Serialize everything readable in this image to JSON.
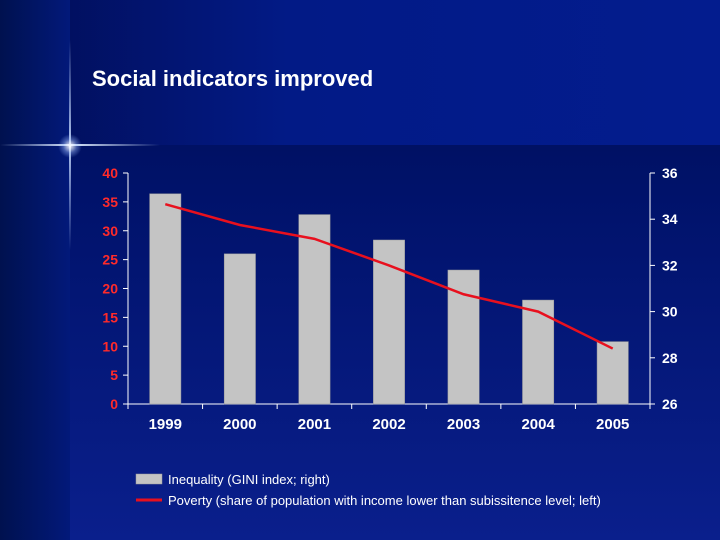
{
  "slide": {
    "title": "Social indicators improved"
  },
  "colors": {
    "bar_fill": "#c4c4c4",
    "line": "#e8101e",
    "left_axis_text": "#ff2a2a",
    "right_axis_text": "#ffffff",
    "axis_line": "#ffffff"
  },
  "chart_data": {
    "type": "bar",
    "categories": [
      "1999",
      "2000",
      "2001",
      "2002",
      "2003",
      "2004",
      "2005"
    ],
    "series": [
      {
        "name": "Inequality (GINI index; right)",
        "type": "bar",
        "axis": "right",
        "values": [
          35.1,
          32.5,
          34.2,
          33.1,
          31.8,
          30.5,
          28.7
        ]
      },
      {
        "name": "Poverty (share of population with income lower than subissitence level; left)",
        "type": "line",
        "axis": "left",
        "values": [
          34.6,
          31.0,
          28.6,
          24.0,
          19.0,
          16.0,
          9.6
        ]
      }
    ],
    "y_left": {
      "ticks": [
        "0",
        "5",
        "10",
        "15",
        "20",
        "25",
        "30",
        "35",
        "40"
      ],
      "ylim": [
        0,
        40
      ]
    },
    "y_right": {
      "ticks": [
        "26",
        "28",
        "30",
        "32",
        "34",
        "36"
      ],
      "ylim": [
        26,
        36
      ]
    },
    "grid": false,
    "legend_position": "bottom"
  }
}
